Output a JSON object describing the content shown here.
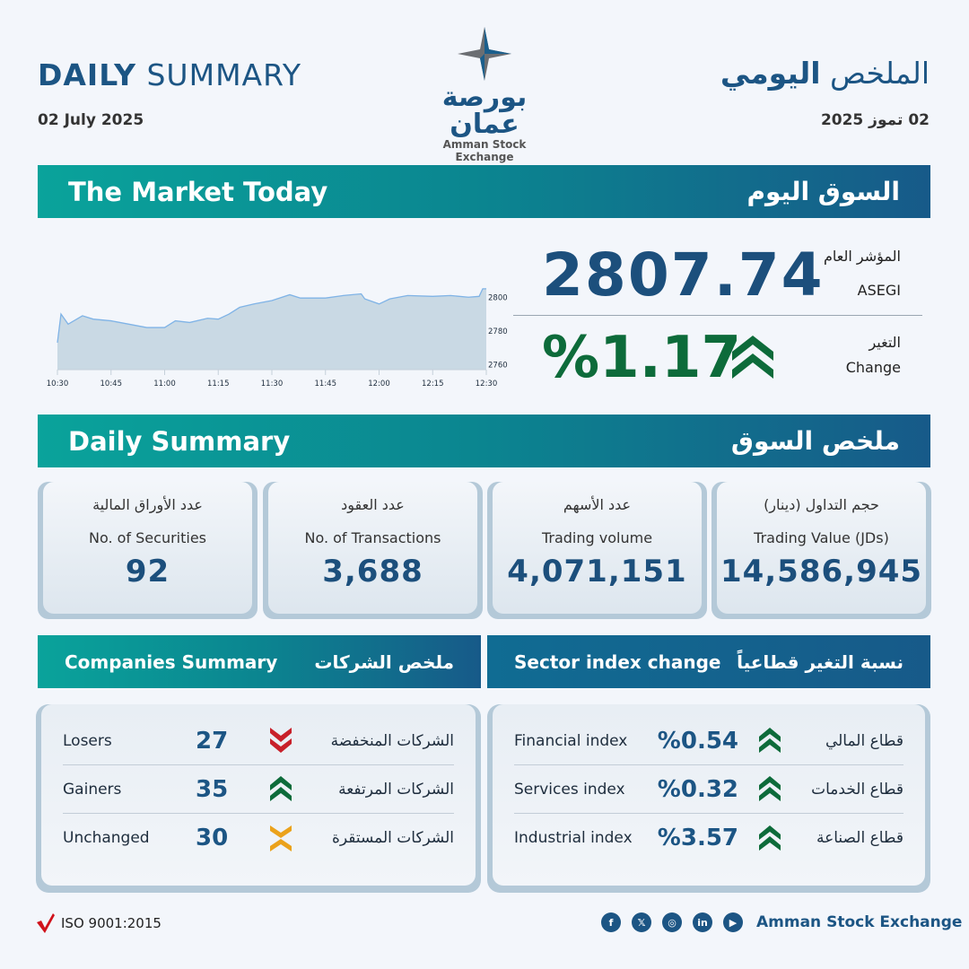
{
  "header": {
    "title_bold": "DAILY",
    "title_rest": " SUMMARY",
    "date_en": "02 July 2025",
    "title_ar_light": "الملخص ",
    "title_ar_bold": "اليومي",
    "date_ar": "02 تموز 2025",
    "logo_ar": "بورصة عمان",
    "logo_en": "Amman Stock Exchange"
  },
  "market": {
    "banner_en": "The Market Today",
    "banner_ar": "السوق اليوم",
    "index_label_ar": "المؤشر العام",
    "index_label_en": "ASEGI",
    "index_value": "2807.74",
    "change_label_ar": "التغير",
    "change_label_en": "Change",
    "change_value": "%1.17",
    "change_direction": "up",
    "up_color": "#0d6b3a"
  },
  "chart_data": {
    "type": "area",
    "x_ticks": [
      "10:30",
      "10:45",
      "11:00",
      "11:15",
      "11:30",
      "11:45",
      "12:00",
      "12:15",
      "12:30"
    ],
    "y_ticks": [
      2760,
      2780,
      2800
    ],
    "ylim": [
      2757,
      2806
    ],
    "line_color": "#7fb3e6",
    "fill_color": "#c9d9e4",
    "points": [
      [
        "10:30",
        2773
      ],
      [
        "10:31",
        2790
      ],
      [
        "10:33",
        2784
      ],
      [
        "10:37",
        2789
      ],
      [
        "10:40",
        2787
      ],
      [
        "10:45",
        2786
      ],
      [
        "10:50",
        2784
      ],
      [
        "10:55",
        2782
      ],
      [
        "11:00",
        2782
      ],
      [
        "11:03",
        2786
      ],
      [
        "11:07",
        2785
      ],
      [
        "11:12",
        2787.5
      ],
      [
        "11:15",
        2787
      ],
      [
        "11:18",
        2790
      ],
      [
        "11:21",
        2794
      ],
      [
        "11:25",
        2796
      ],
      [
        "11:30",
        2798
      ],
      [
        "11:35",
        2801.5
      ],
      [
        "11:38",
        2799.5
      ],
      [
        "11:45",
        2799.5
      ],
      [
        "11:50",
        2801
      ],
      [
        "11:55",
        2802
      ],
      [
        "11:56",
        2799
      ],
      [
        "12:00",
        2796
      ],
      [
        "12:03",
        2799
      ],
      [
        "12:08",
        2801
      ],
      [
        "12:15",
        2800.5
      ],
      [
        "12:20",
        2801
      ],
      [
        "12:25",
        2800
      ],
      [
        "12:28",
        2800.5
      ],
      [
        "12:29",
        2805
      ],
      [
        "12:30",
        2805
      ]
    ]
  },
  "summary": {
    "banner_en": "Daily Summary",
    "banner_ar": "ملخص السوق",
    "cards": [
      {
        "ar": "عدد الأوراق المالية",
        "en": "No. of Securities",
        "value": "92"
      },
      {
        "ar": "عدد العقود",
        "en": "No. of Transactions",
        "value": "3,688"
      },
      {
        "ar": "عدد الأسهم",
        "en": "Trading volume",
        "value": "4,071,151"
      },
      {
        "ar": "حجم التداول (دينار)",
        "en": "Trading Value (JDs)",
        "value": "14,586,945"
      }
    ]
  },
  "companies": {
    "banner_en": "Companies Summary",
    "banner_ar": "ملخص الشركات",
    "rows": [
      {
        "en": "Losers",
        "value": "27",
        "icon": "double-chevron-down",
        "ar": "الشركات المنخفضة",
        "color": "#c8202a"
      },
      {
        "en": "Gainers",
        "value": "35",
        "icon": "double-chevron-up",
        "ar": "الشركات المرتفعة",
        "color": "#0d6b3a"
      },
      {
        "en": "Unchanged",
        "value": "30",
        "icon": "unchanged-chevrons",
        "ar": "الشركات المستقرة",
        "color": "#eba21b"
      }
    ]
  },
  "sectors": {
    "banner_en": "Sector index change",
    "banner_ar": "نسبة التغير قطاعياً",
    "rows": [
      {
        "en": "Financial index",
        "value": "%0.54",
        "ar": "قطاع المالي"
      },
      {
        "en": "Services index",
        "value": "%0.32",
        "ar": "قطاع الخدمات"
      },
      {
        "en": "Industrial index",
        "value": "%3.57",
        "ar": "قطاع الصناعة"
      }
    ]
  },
  "footer": {
    "iso": "ISO 9001:2015",
    "brand": "Amman Stock Exchange",
    "social": [
      "facebook",
      "x",
      "instagram",
      "linkedin",
      "youtube"
    ]
  }
}
